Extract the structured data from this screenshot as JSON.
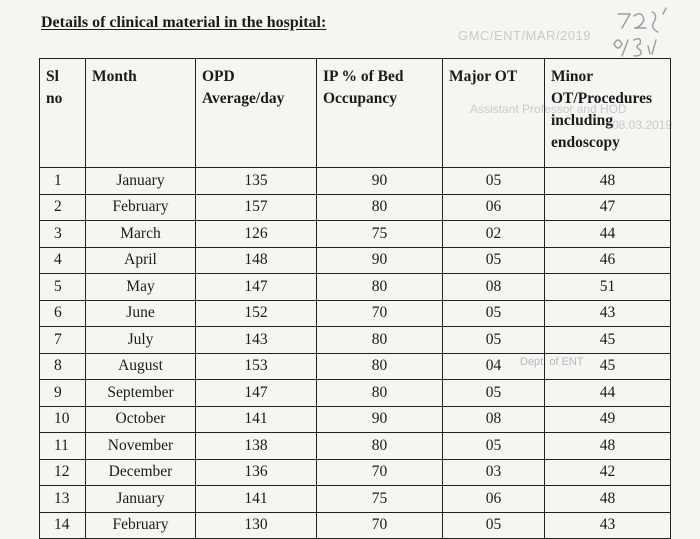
{
  "title": "Details of clinical material in the hospital:",
  "background_bleed": {
    "line1": "GMC/ENT/MAR/2019",
    "line2": "08.03.2019",
    "line3": "Assistant Professor and HOD",
    "line4": "Dept. of ENT",
    "stamp_text": "7/29 8/3/19"
  },
  "table": {
    "headers": {
      "sl": "Sl no",
      "month": "Month",
      "opd": "OPD Average/day",
      "ip": "IP % of Bed Occupancy",
      "major": "Major OT",
      "minor": "Minor OT/Procedures including endoscopy"
    },
    "rows": [
      {
        "sl": "1",
        "month": "January",
        "opd": "135",
        "ip": "90",
        "major": "05",
        "minor": "48"
      },
      {
        "sl": "2",
        "month": "February",
        "opd": "157",
        "ip": "80",
        "major": "06",
        "minor": "47"
      },
      {
        "sl": "3",
        "month": "March",
        "opd": "126",
        "ip": "75",
        "major": "02",
        "minor": "44"
      },
      {
        "sl": "4",
        "month": "April",
        "opd": "148",
        "ip": "90",
        "major": "05",
        "minor": "46"
      },
      {
        "sl": "5",
        "month": "May",
        "opd": "147",
        "ip": "80",
        "major": "08",
        "minor": "51"
      },
      {
        "sl": "6",
        "month": "June",
        "opd": "152",
        "ip": "70",
        "major": "05",
        "minor": "43"
      },
      {
        "sl": "7",
        "month": "July",
        "opd": "143",
        "ip": "80",
        "major": "05",
        "minor": "45"
      },
      {
        "sl": "8",
        "month": "August",
        "opd": "153",
        "ip": "80",
        "major": "04",
        "minor": "45"
      },
      {
        "sl": "9",
        "month": "September",
        "opd": "147",
        "ip": "80",
        "major": "05",
        "minor": "44"
      },
      {
        "sl": "10",
        "month": "October",
        "opd": "141",
        "ip": "90",
        "major": "08",
        "minor": "49"
      },
      {
        "sl": "11",
        "month": "November",
        "opd": "138",
        "ip": "80",
        "major": "05",
        "minor": "48"
      },
      {
        "sl": "12",
        "month": "December",
        "opd": "136",
        "ip": "70",
        "major": "03",
        "minor": "42"
      },
      {
        "sl": "13",
        "month": "January",
        "opd": "141",
        "ip": "75",
        "major": "06",
        "minor": "48"
      },
      {
        "sl": "14",
        "month": "February",
        "opd": "130",
        "ip": "70",
        "major": "05",
        "minor": "43"
      }
    ]
  }
}
